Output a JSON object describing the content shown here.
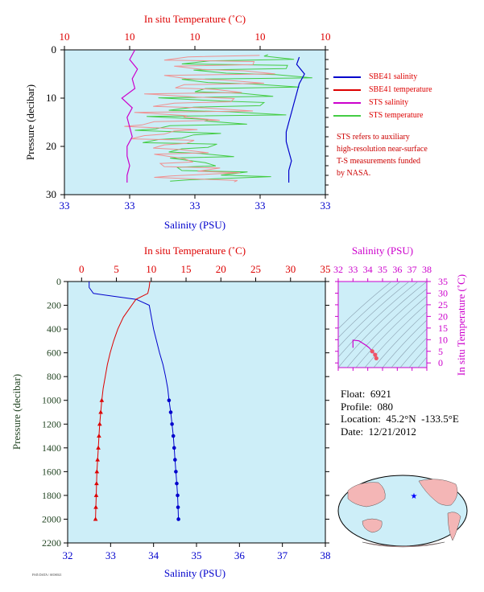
{
  "colors": {
    "plot_bg": "#cdeef8",
    "salinity": "#0000cc",
    "temperature": "#dd0000",
    "sts_salinity": "#cc00cc",
    "sts_temperature": "#44cc44",
    "pressure_label": "#224422",
    "ts_panel": "#cc00cc"
  },
  "legend": [
    {
      "label": "SBE41 salinity",
      "color": "#0000cc"
    },
    {
      "label": "SBE41 temperature",
      "color": "#dd0000"
    },
    {
      "label": "STS salinity",
      "color": "#cc00cc"
    },
    {
      "label": "STS temperature",
      "color": "#44cc44"
    }
  ],
  "note_lines": [
    "STS refers to auxiliary",
    "high-resolution near-surface",
    "T-S measurements funded",
    "by NASA."
  ],
  "info": {
    "float": "Float:  6921",
    "profile": "Profile:  080",
    "location": "Location:  45.2°N  -133.5°E",
    "date": "Date:  12/21/2012"
  },
  "footer_text": "FSI5 DATA / SIO6921",
  "chart_data": [
    {
      "type": "line",
      "panel": "near-surface",
      "top_axis_label": "In situ Temperature (˚C)",
      "top_ticks": [
        "10",
        "10",
        "10",
        "10",
        "10"
      ],
      "bottom_axis_label": "Salinity (PSU)",
      "bottom_ticks": [
        "33",
        "33",
        "33",
        "33",
        "33"
      ],
      "ylabel": "Pressure (decibar)",
      "y_ticks": [
        "0",
        "10",
        "20",
        "30"
      ],
      "ylim": [
        0,
        30
      ],
      "series": [
        {
          "name": "SBE41 salinity",
          "pressure": [
            1.5,
            3,
            5,
            7,
            9,
            11,
            13,
            15,
            17,
            19,
            21,
            23,
            25,
            27.5
          ],
          "x_frac": [
            0.9,
            0.89,
            0.92,
            0.9,
            0.89,
            0.88,
            0.87,
            0.86,
            0.85,
            0.85,
            0.86,
            0.87,
            0.86,
            0.86
          ]
        },
        {
          "name": "STS salinity",
          "pressure": [
            0,
            2,
            4,
            6,
            8,
            10,
            12,
            14,
            16,
            18,
            20,
            22,
            24,
            26,
            27.5
          ],
          "x_frac": [
            0.27,
            0.25,
            0.28,
            0.26,
            0.27,
            0.22,
            0.26,
            0.24,
            0.25,
            0.26,
            0.24,
            0.24,
            0.25,
            0.24,
            0.24
          ]
        }
      ]
    },
    {
      "type": "line",
      "panel": "full-profile",
      "top_axis_label": "In situ Temperature (˚C)",
      "xlim_temperature": [
        -2,
        35
      ],
      "top_ticks": [
        "0",
        "5",
        "10",
        "15",
        "20",
        "25",
        "30",
        "35"
      ],
      "bottom_axis_label": "Salinity (PSU)",
      "xlim_salinity": [
        32,
        38
      ],
      "bottom_ticks": [
        "32",
        "33",
        "34",
        "35",
        "36",
        "37",
        "38"
      ],
      "ylabel": "Pressure (decibar)",
      "ylim": [
        0,
        2200
      ],
      "y_ticks": [
        "0",
        "200",
        "400",
        "600",
        "800",
        "1000",
        "1200",
        "1400",
        "1600",
        "1800",
        "2000",
        "2200"
      ],
      "series": [
        {
          "name": "SBE41 salinity",
          "color": "#0000cc",
          "pressure": [
            0,
            50,
            100,
            150,
            200,
            300,
            400,
            500,
            600,
            700,
            800,
            900,
            1000,
            1100,
            1200,
            1300,
            1400,
            1500,
            1600,
            1700,
            1800,
            1900,
            2000
          ],
          "values": [
            32.5,
            32.5,
            32.6,
            33.6,
            33.9,
            33.95,
            34.0,
            34.07,
            34.14,
            34.22,
            34.28,
            34.33,
            34.36,
            34.4,
            34.43,
            34.46,
            34.48,
            34.5,
            34.52,
            34.54,
            34.56,
            34.57,
            34.58
          ]
        },
        {
          "name": "SBE41 temperature",
          "color": "#dd0000",
          "pressure": [
            0,
            50,
            100,
            150,
            200,
            300,
            400,
            500,
            600,
            700,
            800,
            900,
            1000,
            1100,
            1200,
            1300,
            1400,
            1500,
            1600,
            1700,
            1800,
            1900,
            2000
          ],
          "values": [
            9.8,
            9.7,
            9.5,
            7.8,
            7.2,
            6.0,
            5.2,
            4.6,
            4.1,
            3.7,
            3.4,
            3.1,
            2.9,
            2.75,
            2.6,
            2.5,
            2.4,
            2.3,
            2.2,
            2.15,
            2.1,
            2.05,
            2.0
          ]
        }
      ],
      "marker_start_pressure": 1000
    },
    {
      "type": "scatter",
      "panel": "T-S diagram",
      "xlabel": "Salinity (PSU)",
      "x_ticks": [
        "32",
        "33",
        "34",
        "35",
        "36",
        "37",
        "38"
      ],
      "ylabel": "In situ Temperature (˚C)",
      "y_ticks": [
        "0",
        "5",
        "10",
        "15",
        "20",
        "25",
        "30",
        "35"
      ],
      "xlim": [
        32,
        38
      ],
      "ylim": [
        -2,
        35
      ],
      "points_salinity": [
        33.0,
        33.0,
        33.4,
        33.9,
        34.1,
        34.3,
        34.5,
        34.58
      ],
      "points_temperature": [
        6.5,
        9.8,
        9.5,
        7.5,
        6.5,
        5.0,
        3.5,
        2.0
      ]
    }
  ]
}
